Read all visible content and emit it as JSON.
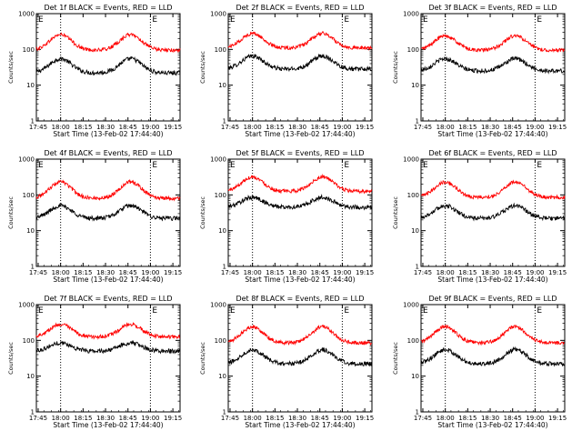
{
  "chart_data": [
    {
      "type": "line",
      "title": "Det 1f BLACK = Events, RED = LLD",
      "xlabel": "Start Time (13-Feb-02 17:44:40)",
      "ylabel": "Counts/sec",
      "yscale": "log",
      "ylim": [
        1,
        1000
      ],
      "xlim": [
        17.73,
        19.33
      ],
      "x_ticks": [
        "17:45",
        "18:00",
        "18:15",
        "18:30",
        "18:45",
        "19:00",
        "19:15"
      ],
      "y_ticks": [
        "1",
        "10",
        "100",
        "1000"
      ],
      "markers": [
        "E",
        "E"
      ],
      "vlines": [
        18.0,
        19.0
      ],
      "series": [
        {
          "name": "Events",
          "color": "#000000",
          "base": 22,
          "peak": 55
        },
        {
          "name": "LLD",
          "color": "#ff0000",
          "base": 95,
          "peak": 260
        }
      ]
    },
    {
      "type": "line",
      "title": "Det 2f BLACK = Events, RED = LLD",
      "xlabel": "Start Time (13-Feb-02 17:44:40)",
      "ylabel": "Counts/sec",
      "yscale": "log",
      "ylim": [
        1,
        1000
      ],
      "xlim": [
        17.73,
        19.33
      ],
      "x_ticks": [
        "17:45",
        "18:00",
        "18:15",
        "18:30",
        "18:45",
        "19:00",
        "19:15"
      ],
      "y_ticks": [
        "1",
        "10",
        "100",
        "1000"
      ],
      "markers": [
        "E",
        "E"
      ],
      "vlines": [
        18.0,
        19.0
      ],
      "series": [
        {
          "name": "Events",
          "color": "#000000",
          "base": 28,
          "peak": 65
        },
        {
          "name": "LLD",
          "color": "#ff0000",
          "base": 110,
          "peak": 280
        }
      ]
    },
    {
      "type": "line",
      "title": "Det 3f BLACK = Events, RED = LLD",
      "xlabel": "Start Time (13-Feb-02 17:44:40)",
      "ylabel": "Counts/sec",
      "yscale": "log",
      "ylim": [
        1,
        1000
      ],
      "xlim": [
        17.73,
        19.33
      ],
      "x_ticks": [
        "17:45",
        "18:00",
        "18:15",
        "18:30",
        "18:45",
        "19:00",
        "19:15"
      ],
      "y_ticks": [
        "1",
        "10",
        "100",
        "1000"
      ],
      "markers": [
        "E",
        "E"
      ],
      "vlines": [
        18.0,
        19.0
      ],
      "series": [
        {
          "name": "Events",
          "color": "#000000",
          "base": 25,
          "peak": 55
        },
        {
          "name": "LLD",
          "color": "#ff0000",
          "base": 95,
          "peak": 240
        }
      ]
    },
    {
      "type": "line",
      "title": "Det 4f BLACK = Events, RED = LLD",
      "xlabel": "Start Time (13-Feb-02 17:44:40)",
      "ylabel": "Counts/sec",
      "yscale": "log",
      "ylim": [
        1,
        1000
      ],
      "xlim": [
        17.73,
        19.33
      ],
      "x_ticks": [
        "17:45",
        "18:00",
        "18:15",
        "18:30",
        "18:45",
        "19:00",
        "19:15"
      ],
      "y_ticks": [
        "1",
        "10",
        "100",
        "1000"
      ],
      "markers": [
        "E",
        "E"
      ],
      "vlines": [
        18.0,
        19.0
      ],
      "series": [
        {
          "name": "Events",
          "color": "#000000",
          "base": 22,
          "peak": 50
        },
        {
          "name": "LLD",
          "color": "#ff0000",
          "base": 80,
          "peak": 230
        }
      ]
    },
    {
      "type": "line",
      "title": "Det 5f BLACK = Events, RED = LLD",
      "xlabel": "Start Time (13-Feb-02 17:44:40)",
      "ylabel": "Counts/sec",
      "yscale": "log",
      "ylim": [
        1,
        1000
      ],
      "xlim": [
        17.73,
        19.33
      ],
      "x_ticks": [
        "17:45",
        "18:00",
        "18:15",
        "18:30",
        "18:45",
        "19:00",
        "19:15"
      ],
      "y_ticks": [
        "1",
        "10",
        "100",
        "1000"
      ],
      "markers": [
        "E",
        "E"
      ],
      "vlines": [
        18.0,
        19.0
      ],
      "series": [
        {
          "name": "Events",
          "color": "#000000",
          "base": 45,
          "peak": 85
        },
        {
          "name": "LLD",
          "color": "#ff0000",
          "base": 125,
          "peak": 320
        }
      ]
    },
    {
      "type": "line",
      "title": "Det 6f BLACK = Events, RED = LLD",
      "xlabel": "Start Time (13-Feb-02 17:44:40)",
      "ylabel": "Counts/sec",
      "yscale": "log",
      "ylim": [
        1,
        1000
      ],
      "xlim": [
        17.73,
        19.33
      ],
      "x_ticks": [
        "17:45",
        "18:00",
        "18:15",
        "18:30",
        "18:45",
        "19:00",
        "19:15"
      ],
      "y_ticks": [
        "1",
        "10",
        "100",
        "1000"
      ],
      "markers": [
        "E",
        "E"
      ],
      "vlines": [
        18.0,
        19.0
      ],
      "series": [
        {
          "name": "Events",
          "color": "#000000",
          "base": 22,
          "peak": 50
        },
        {
          "name": "LLD",
          "color": "#ff0000",
          "base": 85,
          "peak": 230
        }
      ]
    },
    {
      "type": "line",
      "title": "Det 7f BLACK = Events, RED = LLD",
      "xlabel": "Start Time (13-Feb-02 17:44:40)",
      "ylabel": "Counts/sec",
      "yscale": "log",
      "ylim": [
        1,
        1000
      ],
      "xlim": [
        17.73,
        19.33
      ],
      "x_ticks": [
        "17:45",
        "18:00",
        "18:15",
        "18:30",
        "18:45",
        "19:00",
        "19:15"
      ],
      "y_ticks": [
        "1",
        "10",
        "100",
        "1000"
      ],
      "markers": [
        "E",
        "E"
      ],
      "vlines": [
        18.0,
        19.0
      ],
      "series": [
        {
          "name": "Events",
          "color": "#000000",
          "base": 50,
          "peak": 85
        },
        {
          "name": "LLD",
          "color": "#ff0000",
          "base": 125,
          "peak": 280
        }
      ]
    },
    {
      "type": "line",
      "title": "Det 8f BLACK = Events, RED = LLD",
      "xlabel": "Start Time (13-Feb-02 17:44:40)",
      "ylabel": "Counts/sec",
      "yscale": "log",
      "ylim": [
        1,
        1000
      ],
      "xlim": [
        17.73,
        19.33
      ],
      "x_ticks": [
        "17:45",
        "18:00",
        "18:15",
        "18:30",
        "18:45",
        "19:00",
        "19:15"
      ],
      "y_ticks": [
        "1",
        "10",
        "100",
        "1000"
      ],
      "markers": [
        "E",
        "E"
      ],
      "vlines": [
        18.0,
        19.0
      ],
      "series": [
        {
          "name": "Events",
          "color": "#000000",
          "base": 22,
          "peak": 55
        },
        {
          "name": "LLD",
          "color": "#ff0000",
          "base": 85,
          "peak": 240
        }
      ]
    },
    {
      "type": "line",
      "title": "Det 9f BLACK = Events, RED = LLD",
      "xlabel": "Start Time (13-Feb-02 17:44:40)",
      "ylabel": "Counts/sec",
      "yscale": "log",
      "ylim": [
        1,
        1000
      ],
      "xlim": [
        17.73,
        19.33
      ],
      "x_ticks": [
        "17:45",
        "18:00",
        "18:15",
        "18:30",
        "18:45",
        "19:00",
        "19:15"
      ],
      "y_ticks": [
        "1",
        "10",
        "100",
        "1000"
      ],
      "markers": [
        "E",
        "E"
      ],
      "vlines": [
        18.0,
        19.0
      ],
      "series": [
        {
          "name": "Events",
          "color": "#000000",
          "base": 22,
          "peak": 55
        },
        {
          "name": "LLD",
          "color": "#ff0000",
          "base": 85,
          "peak": 240
        }
      ]
    }
  ]
}
